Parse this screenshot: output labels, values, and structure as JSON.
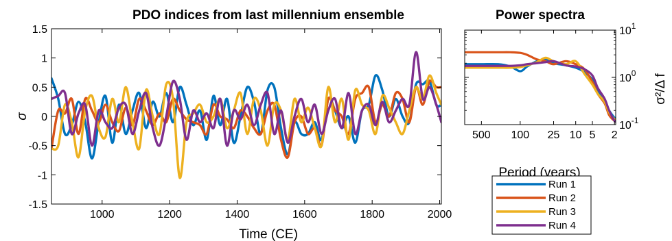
{
  "chart_data": [
    {
      "type": "line",
      "title": "PDO indices from last millennium ensemble",
      "xlabel": "Time (CE)",
      "ylabel": "σ",
      "xlim": [
        850,
        2005
      ],
      "ylim": [
        -1.5,
        1.5
      ],
      "xticks": [
        1000,
        1200,
        1400,
        1600,
        1800,
        2000
      ],
      "yticks": [
        -1.5,
        -1,
        -0.5,
        0,
        0.5,
        1,
        1.5
      ],
      "xtick_labels": [
        "1000",
        "1200",
        "1400",
        "1600",
        "1800",
        "2000"
      ],
      "ytick_labels": [
        "-1.5",
        "-1",
        "-0.5",
        "0",
        "0.5",
        "1",
        "1.5"
      ],
      "grid": false,
      "series": [
        {
          "name": "Run 1",
          "color": "#0072BD",
          "x": [
            850,
            870,
            890,
            910,
            930,
            950,
            970,
            990,
            1010,
            1030,
            1050,
            1070,
            1090,
            1110,
            1130,
            1150,
            1170,
            1190,
            1210,
            1230,
            1250,
            1270,
            1290,
            1310,
            1330,
            1350,
            1370,
            1390,
            1410,
            1430,
            1450,
            1470,
            1490,
            1510,
            1530,
            1550,
            1570,
            1590,
            1610,
            1630,
            1650,
            1670,
            1690,
            1710,
            1730,
            1750,
            1770,
            1790,
            1810,
            1830,
            1850,
            1870,
            1890,
            1910,
            1930,
            1950,
            1970,
            1990,
            2005
          ],
          "values": [
            0.65,
            0.3,
            -0.3,
            -0.15,
            0.25,
            -0.1,
            -0.72,
            -0.1,
            0.35,
            -0.45,
            0.2,
            -0.3,
            0.1,
            0.4,
            -0.2,
            0.25,
            0.0,
            0.4,
            -0.1,
            0.5,
            0.2,
            -0.15,
            0.1,
            -0.4,
            0.35,
            -0.15,
            0.3,
            -0.45,
            0.0,
            0.5,
            0.25,
            -0.3,
            0.45,
            0.5,
            -0.2,
            -0.65,
            -0.1,
            -0.3,
            -0.3,
            -0.1,
            -0.4,
            0.3,
            0.1,
            -0.2,
            0.0,
            -0.45,
            0.1,
            0.2,
            0.7,
            0.45,
            0.0,
            0.3,
            0.0,
            -0.1,
            0.55,
            0.55,
            0.6,
            0.2,
            0.2
          ]
        },
        {
          "name": "Run 2",
          "color": "#D95319",
          "x": [
            850,
            870,
            890,
            910,
            930,
            950,
            970,
            990,
            1010,
            1030,
            1050,
            1070,
            1090,
            1110,
            1130,
            1150,
            1170,
            1190,
            1210,
            1230,
            1250,
            1270,
            1290,
            1310,
            1330,
            1350,
            1370,
            1390,
            1410,
            1430,
            1450,
            1470,
            1490,
            1510,
            1530,
            1550,
            1570,
            1590,
            1610,
            1630,
            1650,
            1670,
            1690,
            1710,
            1730,
            1750,
            1770,
            1790,
            1810,
            1830,
            1850,
            1870,
            1890,
            1910,
            1930,
            1950,
            1970,
            1990,
            2005
          ],
          "values": [
            -0.55,
            0.1,
            0.05,
            0.3,
            -0.3,
            0.3,
            0.1,
            -0.1,
            0.2,
            -0.1,
            -0.25,
            0.15,
            -0.15,
            0.3,
            0.1,
            -0.15,
            0.05,
            -0.1,
            0.3,
            0.1,
            -0.05,
            -0.1,
            -0.15,
            -0.3,
            0.2,
            0.0,
            -0.05,
            -0.2,
            0.1,
            0.0,
            -0.2,
            -0.3,
            0.1,
            0.2,
            -0.4,
            -0.7,
            -0.1,
            0.0,
            -0.3,
            -0.2,
            -0.5,
            0.3,
            0.1,
            0.0,
            -0.3,
            0.3,
            0.4,
            0.5,
            -0.1,
            0.2,
            0.0,
            0.4,
            0.3,
            -0.1,
            0.5,
            0.2,
            0.6,
            0.5,
            0.5
          ]
        },
        {
          "name": "Run 3",
          "color": "#EDB120",
          "x": [
            850,
            870,
            890,
            910,
            930,
            950,
            970,
            990,
            1010,
            1030,
            1050,
            1070,
            1090,
            1110,
            1130,
            1150,
            1170,
            1190,
            1210,
            1230,
            1250,
            1270,
            1290,
            1310,
            1330,
            1350,
            1370,
            1390,
            1410,
            1430,
            1450,
            1470,
            1490,
            1510,
            1530,
            1550,
            1570,
            1590,
            1610,
            1630,
            1650,
            1670,
            1690,
            1710,
            1730,
            1750,
            1770,
            1790,
            1810,
            1830,
            1850,
            1870,
            1890,
            1910,
            1930,
            1950,
            1970,
            1990,
            2005
          ],
          "values": [
            -0.55,
            -0.5,
            0.2,
            -0.1,
            -0.7,
            0.1,
            0.35,
            -0.2,
            -0.35,
            0.3,
            -0.1,
            0.5,
            -0.1,
            -0.55,
            0.45,
            0.0,
            -0.3,
            0.55,
            0.3,
            -1.05,
            -0.1,
            0.05,
            0.2,
            -0.1,
            0.0,
            0.3,
            -0.2,
            0.1,
            0.4,
            -0.3,
            0.3,
            0.1,
            -0.5,
            0.2,
            0.1,
            -0.4,
            0.3,
            -0.1,
            0.15,
            -0.2,
            -0.5,
            0.5,
            -0.1,
            0.3,
            -0.4,
            0.45,
            0.2,
            0.1,
            -0.3,
            0.35,
            0.15,
            -0.1,
            -0.3,
            0.1,
            0.5,
            0.3,
            0.7,
            0.4,
            0.2
          ]
        },
        {
          "name": "Run 4",
          "color": "#7E2F8E",
          "x": [
            850,
            870,
            890,
            910,
            930,
            950,
            970,
            990,
            1010,
            1030,
            1050,
            1070,
            1090,
            1110,
            1130,
            1150,
            1170,
            1190,
            1210,
            1230,
            1250,
            1270,
            1290,
            1310,
            1330,
            1350,
            1370,
            1390,
            1410,
            1430,
            1450,
            1470,
            1490,
            1510,
            1530,
            1550,
            1570,
            1590,
            1610,
            1630,
            1650,
            1670,
            1690,
            1710,
            1730,
            1750,
            1770,
            1790,
            1810,
            1830,
            1850,
            1870,
            1890,
            1910,
            1930,
            1950,
            1970,
            1990,
            2005
          ],
          "values": [
            0.3,
            0.35,
            0.4,
            -0.3,
            0.05,
            0.2,
            -0.5,
            0.1,
            -0.1,
            -0.2,
            0.15,
            0.2,
            -0.3,
            0.1,
            0.4,
            -0.2,
            -0.5,
            0.0,
            0.6,
            0.3,
            -0.4,
            0.1,
            -0.1,
            0.05,
            -0.2,
            0.3,
            -0.5,
            0.1,
            -0.05,
            0.2,
            -0.15,
            0.2,
            0.4,
            -0.3,
            0.1,
            -0.45,
            0.0,
            0.3,
            -0.1,
            0.2,
            -0.3,
            0.1,
            0.3,
            -0.2,
            0.4,
            -0.3,
            0.1,
            0.2,
            -0.15,
            0.25,
            -0.1,
            0.1,
            0.3,
            0.2,
            1.1,
            0.3,
            0.5,
            0.2,
            -0.1
          ]
        }
      ]
    },
    {
      "type": "line",
      "title": "Power spectra",
      "xlabel": "Period (years)",
      "ylabel": "σ²/Δ f",
      "y_scale": "log",
      "x_scale": "log (frequency, period labels)",
      "xlim_period": [
        1000,
        1.9
      ],
      "ylim": [
        0.1,
        10
      ],
      "xtick_labels": [
        "500",
        "100",
        "25",
        "10",
        "5",
        "2"
      ],
      "xtick_periods": [
        500,
        100,
        25,
        10,
        5,
        2
      ],
      "ytick_labels": [
        "10",
        "10",
        "10"
      ],
      "ytick_exponents": [
        "-1",
        "0",
        "1"
      ],
      "ytick_values": [
        0.1,
        1,
        10
      ],
      "grid": false,
      "legend": "below-right",
      "series": [
        {
          "name": "Run 1",
          "color": "#0072BD",
          "period": [
            1000,
            500,
            250,
            150,
            100,
            75,
            50,
            35,
            25,
            15,
            10,
            7,
            5,
            4,
            3,
            2.5,
            2,
            1.9
          ],
          "values": [
            1.9,
            1.9,
            1.9,
            1.7,
            1.35,
            1.7,
            2.2,
            2.4,
            2.0,
            1.8,
            1.6,
            1.3,
            0.9,
            0.5,
            0.3,
            0.2,
            0.14,
            0.14
          ]
        },
        {
          "name": "Run 2",
          "color": "#D95319",
          "period": [
            1000,
            500,
            250,
            150,
            100,
            75,
            50,
            35,
            25,
            15,
            10,
            7,
            5,
            4,
            3,
            2.5,
            2,
            1.9
          ],
          "values": [
            3.4,
            3.4,
            3.4,
            3.4,
            3.3,
            3.0,
            2.4,
            2.2,
            1.9,
            2.2,
            1.9,
            1.5,
            0.8,
            0.45,
            0.28,
            0.16,
            0.12,
            0.12
          ]
        },
        {
          "name": "Run 3",
          "color": "#EDB120",
          "period": [
            1000,
            500,
            250,
            150,
            100,
            75,
            50,
            35,
            25,
            15,
            10,
            7,
            5,
            4,
            3,
            2.5,
            2,
            1.9
          ],
          "values": [
            1.6,
            1.6,
            1.6,
            1.6,
            1.65,
            1.8,
            2.1,
            2.6,
            2.2,
            1.9,
            2.2,
            1.2,
            0.7,
            0.45,
            0.3,
            0.18,
            0.13,
            0.13
          ]
        },
        {
          "name": "Run 4",
          "color": "#7E2F8E",
          "period": [
            1000,
            500,
            250,
            150,
            100,
            75,
            50,
            35,
            25,
            15,
            10,
            7,
            5,
            4,
            3,
            2.5,
            2,
            1.9
          ],
          "values": [
            1.75,
            1.75,
            1.75,
            1.75,
            1.8,
            1.9,
            2.0,
            2.1,
            2.2,
            1.8,
            1.7,
            1.5,
            1.1,
            0.6,
            0.35,
            0.2,
            0.12,
            0.12
          ]
        }
      ]
    }
  ]
}
